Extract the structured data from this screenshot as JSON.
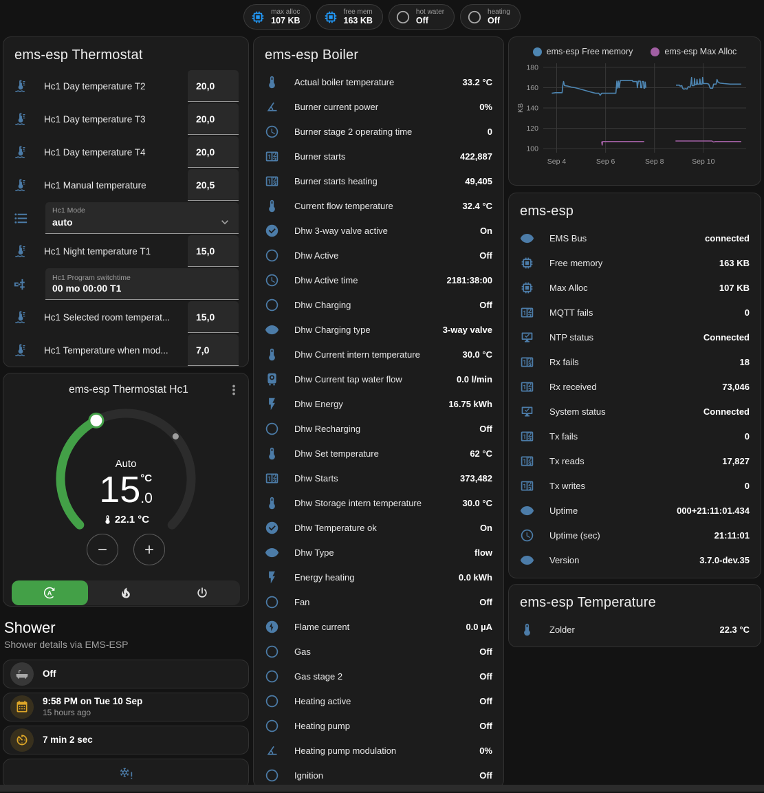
{
  "badges": [
    {
      "label": "max alloc",
      "value": "107 KB",
      "icon": "chip",
      "icon_color": "blue"
    },
    {
      "label": "free mem",
      "value": "163 KB",
      "icon": "chip",
      "icon_color": "blue"
    },
    {
      "label": "hot water",
      "value": "Off",
      "icon": "circle-outline",
      "icon_color": "grey"
    },
    {
      "label": "heating",
      "value": "Off",
      "icon": "circle-outline",
      "icon_color": "grey"
    }
  ],
  "thermostat_card": {
    "title": "ems-esp Thermostat",
    "rows": [
      {
        "type": "number",
        "icon": "thermometer-water",
        "label": "Hc1 Day temperature T2",
        "value": "20,0"
      },
      {
        "type": "number",
        "icon": "thermometer-water",
        "label": "Hc1 Day temperature T3",
        "value": "20,0"
      },
      {
        "type": "number",
        "icon": "thermometer-water",
        "label": "Hc1 Day temperature T4",
        "value": "20,0"
      },
      {
        "type": "number",
        "icon": "thermometer-water",
        "label": "Hc1 Manual temperature",
        "value": "20,5"
      },
      {
        "type": "select",
        "icon": "format-list",
        "label": "Hc1 Mode",
        "value": "auto"
      },
      {
        "type": "number",
        "icon": "thermometer-water",
        "label": "Hc1 Night temperature T1",
        "value": "15,0"
      },
      {
        "type": "text",
        "icon": "pipe-valve",
        "label": "Hc1 Program switchtime",
        "value": "00 mo 00:00 T1"
      },
      {
        "type": "number",
        "icon": "thermometer-water",
        "label": "Hc1 Selected room temperat...",
        "value": "15,0"
      },
      {
        "type": "number",
        "icon": "thermometer-water",
        "label": "Hc1 Temperature when mod...",
        "value": "7,0"
      }
    ]
  },
  "dial_card": {
    "title": "ems-esp Thermostat Hc1",
    "mode_label": "Auto",
    "target_int": "15",
    "target_frac": ".0",
    "target_unit": "°C",
    "current_text": "22.1 °C",
    "target_value": 15.0,
    "current_value": 22.1,
    "min": 5,
    "max": 30,
    "accent": "#43a047",
    "modes": [
      {
        "icon": "thermostat-auto",
        "active": true
      },
      {
        "icon": "fire",
        "active": false
      },
      {
        "icon": "power",
        "active": false
      }
    ]
  },
  "shower": {
    "title": "Shower",
    "subtitle": "Shower details via EMS-ESP",
    "tiles": [
      {
        "icon": "bathtub",
        "icon_color": "grey",
        "primary": "Off",
        "secondary": ""
      },
      {
        "icon": "calendar",
        "icon_color": "amber",
        "primary": "9:58 PM on Tue 10 Sep",
        "secondary": "15 hours ago"
      },
      {
        "icon": "timer",
        "icon_color": "amber",
        "primary": "7 min 2 sec",
        "secondary": ""
      },
      {
        "icon": "snowflake-alert",
        "icon_color": "steel",
        "primary": "",
        "secondary": "",
        "centered": true
      }
    ]
  },
  "boiler_card": {
    "title": "ems-esp Boiler",
    "rows": [
      {
        "icon": "thermometer",
        "label": "Actual boiler temperature",
        "value": "33.2 °C"
      },
      {
        "icon": "gauge",
        "label": "Burner current power",
        "value": "0%"
      },
      {
        "icon": "clock",
        "label": "Burner stage 2 operating time",
        "value": "0"
      },
      {
        "icon": "counter",
        "label": "Burner starts",
        "value": "422,887"
      },
      {
        "icon": "counter",
        "label": "Burner starts heating",
        "value": "49,405"
      },
      {
        "icon": "thermometer",
        "label": "Current flow temperature",
        "value": "32.4 °C"
      },
      {
        "icon": "check-circle",
        "label": "Dhw 3-way valve active",
        "value": "On"
      },
      {
        "icon": "circle-outline",
        "label": "Dhw Active",
        "value": "Off"
      },
      {
        "icon": "clock",
        "label": "Dhw Active time",
        "value": "2181:38:00"
      },
      {
        "icon": "circle-outline",
        "label": "Dhw Charging",
        "value": "Off"
      },
      {
        "icon": "eye",
        "label": "Dhw Charging type",
        "value": "3-way valve"
      },
      {
        "icon": "thermometer",
        "label": "Dhw Current intern temperature",
        "value": "30.0 °C"
      },
      {
        "icon": "water-boiler",
        "label": "Dhw Current tap water flow",
        "value": "0.0 l/min"
      },
      {
        "icon": "flash",
        "label": "Dhw Energy",
        "value": "16.75 kWh"
      },
      {
        "icon": "circle-outline",
        "label": "Dhw Recharging",
        "value": "Off"
      },
      {
        "icon": "thermometer",
        "label": "Dhw Set temperature",
        "value": "62 °C"
      },
      {
        "icon": "counter",
        "label": "Dhw Starts",
        "value": "373,482"
      },
      {
        "icon": "thermometer",
        "label": "Dhw Storage intern temperature",
        "value": "30.0 °C"
      },
      {
        "icon": "check-circle",
        "label": "Dhw Temperature ok",
        "value": "On"
      },
      {
        "icon": "eye",
        "label": "Dhw Type",
        "value": "flow"
      },
      {
        "icon": "flash",
        "label": "Energy heating",
        "value": "0.0 kWh"
      },
      {
        "icon": "circle-outline",
        "label": "Fan",
        "value": "Off"
      },
      {
        "icon": "flash-circle",
        "label": "Flame current",
        "value": "0.0 µA"
      },
      {
        "icon": "circle-outline",
        "label": "Gas",
        "value": "Off"
      },
      {
        "icon": "circle-outline",
        "label": "Gas stage 2",
        "value": "Off"
      },
      {
        "icon": "circle-outline",
        "label": "Heating active",
        "value": "Off"
      },
      {
        "icon": "circle-outline",
        "label": "Heating pump",
        "value": "Off"
      },
      {
        "icon": "gauge",
        "label": "Heating pump modulation",
        "value": "0%"
      },
      {
        "icon": "circle-outline",
        "label": "Ignition",
        "value": "Off"
      }
    ]
  },
  "emsesp_card": {
    "title": "ems-esp",
    "rows": [
      {
        "icon": "eye",
        "label": "EMS Bus",
        "value": "connected"
      },
      {
        "icon": "chip",
        "label": "Free memory",
        "value": "163 KB"
      },
      {
        "icon": "chip",
        "label": "Max Alloc",
        "value": "107 KB"
      },
      {
        "icon": "counter",
        "label": "MQTT fails",
        "value": "0"
      },
      {
        "icon": "monitor-check",
        "label": "NTP status",
        "value": "Connected"
      },
      {
        "icon": "counter",
        "label": "Rx fails",
        "value": "18"
      },
      {
        "icon": "counter",
        "label": "Rx received",
        "value": "73,046"
      },
      {
        "icon": "monitor-check",
        "label": "System status",
        "value": "Connected"
      },
      {
        "icon": "counter",
        "label": "Tx fails",
        "value": "0"
      },
      {
        "icon": "counter",
        "label": "Tx reads",
        "value": "17,827"
      },
      {
        "icon": "counter",
        "label": "Tx writes",
        "value": "0"
      },
      {
        "icon": "eye",
        "label": "Uptime",
        "value": "000+21:11:01.434"
      },
      {
        "icon": "clock",
        "label": "Uptime (sec)",
        "value": "21:11:01"
      },
      {
        "icon": "eye",
        "label": "Version",
        "value": "3.7.0-dev.35"
      }
    ]
  },
  "temperature_card": {
    "title": "ems-esp Temperature",
    "rows": [
      {
        "icon": "thermometer",
        "label": "Zolder",
        "value": "22.3 °C"
      }
    ]
  },
  "chart_data": {
    "type": "line",
    "title": "",
    "ylabel": "KB",
    "ylim": [
      96,
      184
    ],
    "yticks": [
      100,
      120,
      140,
      160,
      180
    ],
    "xlim": [
      3.45,
      11.75
    ],
    "xticks": [
      {
        "x": 4,
        "label": "Sep 4"
      },
      {
        "x": 6,
        "label": "Sep 6"
      },
      {
        "x": 8,
        "label": "Sep 8"
      },
      {
        "x": 10,
        "label": "Sep 10"
      }
    ],
    "grid": true,
    "legend_position": "top",
    "series": [
      {
        "name": "ems-esp Free memory",
        "color": "#4e86b2",
        "segments": [
          [
            [
              3.8,
              154.5
            ],
            [
              3.95,
              155
            ],
            [
              4.22,
              155
            ],
            [
              4.25,
              162
            ],
            [
              4.28,
              166
            ],
            [
              4.32,
              162
            ],
            [
              4.45,
              161.5
            ],
            [
              4.6,
              160.5
            ],
            [
              4.75,
              160
            ],
            [
              4.9,
              159
            ],
            [
              5.05,
              158
            ],
            [
              5.2,
              157
            ],
            [
              5.35,
              156
            ],
            [
              5.5,
              155
            ],
            [
              5.6,
              154.5
            ],
            [
              5.72,
              154.5
            ],
            [
              5.78,
              152.5
            ],
            [
              5.84,
              154.5
            ],
            [
              6.42,
              154.5
            ],
            [
              6.46,
              166.5
            ],
            [
              6.5,
              159.5
            ],
            [
              6.53,
              166.5
            ],
            [
              6.56,
              160
            ],
            [
              6.6,
              167
            ],
            [
              7.1,
              167
            ],
            [
              7.12,
              166
            ],
            [
              7.28,
              166
            ],
            [
              7.3,
              160
            ],
            [
              7.34,
              166.5
            ],
            [
              7.42,
              166.5
            ],
            [
              7.44,
              160
            ],
            [
              7.48,
              160
            ],
            [
              7.5,
              166
            ],
            [
              7.55,
              166
            ],
            [
              7.57,
              159.5
            ],
            [
              7.6,
              159.5
            ],
            [
              7.62,
              165.5
            ],
            [
              7.65,
              160
            ]
          ],
          [
            [
              8.88,
              162.5
            ],
            [
              9.02,
              162.5
            ],
            [
              9.05,
              161.5
            ],
            [
              9.12,
              162
            ],
            [
              9.15,
              159.5
            ],
            [
              9.2,
              158.5
            ],
            [
              9.28,
              159
            ],
            [
              9.33,
              158.5
            ],
            [
              9.38,
              161
            ],
            [
              9.45,
              160.5
            ],
            [
              9.48,
              162
            ],
            [
              9.52,
              170
            ],
            [
              9.54,
              162
            ],
            [
              9.62,
              162
            ],
            [
              9.64,
              169
            ],
            [
              9.66,
              163
            ],
            [
              9.72,
              163
            ],
            [
              9.74,
              168
            ],
            [
              9.76,
              163.5
            ],
            [
              9.84,
              163.5
            ],
            [
              9.86,
              168.5
            ],
            [
              9.88,
              163.5
            ],
            [
              9.95,
              163.5
            ],
            [
              9.97,
              170
            ],
            [
              10.0,
              164
            ],
            [
              10.15,
              164
            ],
            [
              10.22,
              163.5
            ],
            [
              10.28,
              159.5
            ],
            [
              10.38,
              159.5
            ],
            [
              10.42,
              163.5
            ],
            [
              10.52,
              163.5
            ],
            [
              10.56,
              168
            ],
            [
              10.6,
              165.5
            ],
            [
              10.68,
              164.5
            ],
            [
              10.85,
              164
            ],
            [
              11.1,
              163.5
            ],
            [
              11.55,
              163.5
            ]
          ]
        ]
      },
      {
        "name": "ems-esp Max Alloc",
        "color": "#a15fa3",
        "segments": [
          [
            [
              5.84,
              107
            ],
            [
              5.86,
              103.5
            ],
            [
              5.88,
              107
            ],
            [
              7.58,
              107
            ]
          ],
          [
            [
              8.86,
              107.5
            ],
            [
              10.35,
              107.5
            ],
            [
              10.42,
              106.5
            ],
            [
              10.5,
              107
            ],
            [
              11.55,
              107
            ]
          ]
        ]
      }
    ]
  }
}
